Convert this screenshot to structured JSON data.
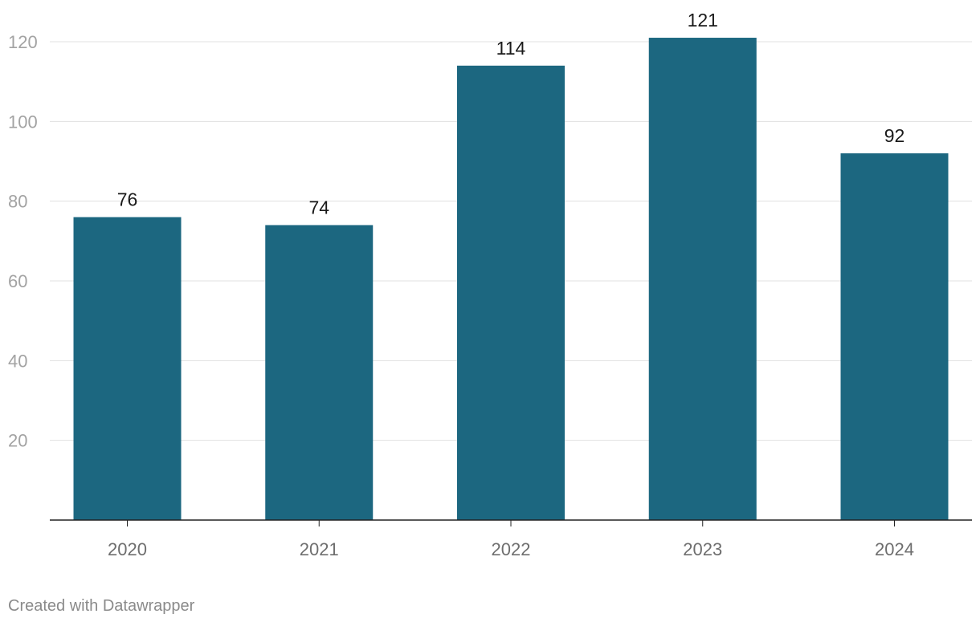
{
  "chart_data": {
    "type": "bar",
    "title": "",
    "xlabel": "",
    "ylabel": "",
    "categories": [
      "2020",
      "2021",
      "2022",
      "2023",
      "2024"
    ],
    "values": [
      76,
      74,
      114,
      121,
      92
    ],
    "data_labels": [
      "76",
      "74",
      "114",
      "121",
      "92"
    ],
    "ylim": [
      0,
      120
    ],
    "yticks": [
      20,
      40,
      60,
      80,
      100,
      120
    ],
    "ytick_labels": [
      "20",
      "40",
      "60",
      "80",
      "100",
      "120"
    ],
    "grid": true,
    "legend": "none",
    "bar_color": "#1c6780"
  },
  "footer": {
    "credit": "Created with Datawrapper"
  }
}
